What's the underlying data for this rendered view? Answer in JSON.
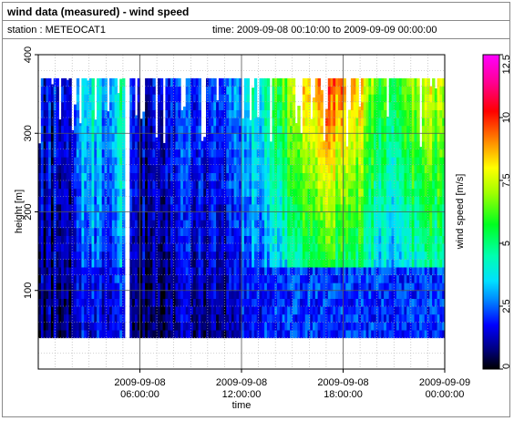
{
  "header": {
    "title": "wind data (measured) - wind speed",
    "station": "station : METEOCAT1",
    "time_range": "time: 2009-09-08 00:10:00 to 2009-09-09 00:00:00"
  },
  "chart_data": {
    "type": "heatmap",
    "xlabel": "time",
    "ylabel": "height [m]",
    "colorbar_label": "wind speed [m/s]",
    "x_range_hours": [
      0,
      24
    ],
    "ylim": [
      0,
      400
    ],
    "color_range": [
      0,
      12.5
    ],
    "y_ticks": [
      {
        "value": 100,
        "label": "100"
      },
      {
        "value": 200,
        "label": "200"
      },
      {
        "value": 300,
        "label": "300"
      },
      {
        "value": 400,
        "label": "400"
      }
    ],
    "x_ticks": [
      {
        "value": 6,
        "label_date": "2009-09-08",
        "label_time": "06:00:00"
      },
      {
        "value": 12,
        "label_date": "2009-09-08",
        "label_time": "12:00:00"
      },
      {
        "value": 18,
        "label_date": "2009-09-08",
        "label_time": "18:00:00"
      },
      {
        "value": 24,
        "label_date": "2009-09-09",
        "label_time": "00:00:00"
      }
    ],
    "colorbar_ticks": [
      {
        "value": 0,
        "label": "0"
      },
      {
        "value": 2.5,
        "label": "2.5"
      },
      {
        "value": 5,
        "label": "5"
      },
      {
        "value": 7.5,
        "label": "7.5"
      },
      {
        "value": 10,
        "label": "10"
      },
      {
        "value": 12.5,
        "label": "12.5"
      }
    ],
    "data_height_range": [
      40,
      370
    ],
    "speed_profile_by_hour": [
      {
        "hour": 0,
        "speed": 1.2
      },
      {
        "hour": 2,
        "speed": 1.5
      },
      {
        "hour": 3,
        "speed": 3.5
      },
      {
        "hour": 4,
        "speed": 2.0
      },
      {
        "hour": 5,
        "speed": 3.8
      },
      {
        "hour": 6,
        "speed": 1.0
      },
      {
        "hour": 8,
        "speed": 1.8
      },
      {
        "hour": 10,
        "speed": 1.5
      },
      {
        "hour": 12,
        "speed": 2.8
      },
      {
        "hour": 13,
        "speed": 3.3
      },
      {
        "hour": 14,
        "speed": 4.5
      },
      {
        "hour": 15,
        "speed": 5.8
      },
      {
        "hour": 16,
        "speed": 6.6
      },
      {
        "hour": 17,
        "speed": 7.6
      },
      {
        "hour": 18,
        "speed": 7.4
      },
      {
        "hour": 19,
        "speed": 6.6
      },
      {
        "hour": 20,
        "speed": 5.0
      },
      {
        "hour": 21,
        "speed": 4.4
      },
      {
        "hour": 22,
        "speed": 5.6
      },
      {
        "hour": 23,
        "speed": 6.0
      },
      {
        "hour": 24,
        "speed": 5.6
      }
    ]
  }
}
